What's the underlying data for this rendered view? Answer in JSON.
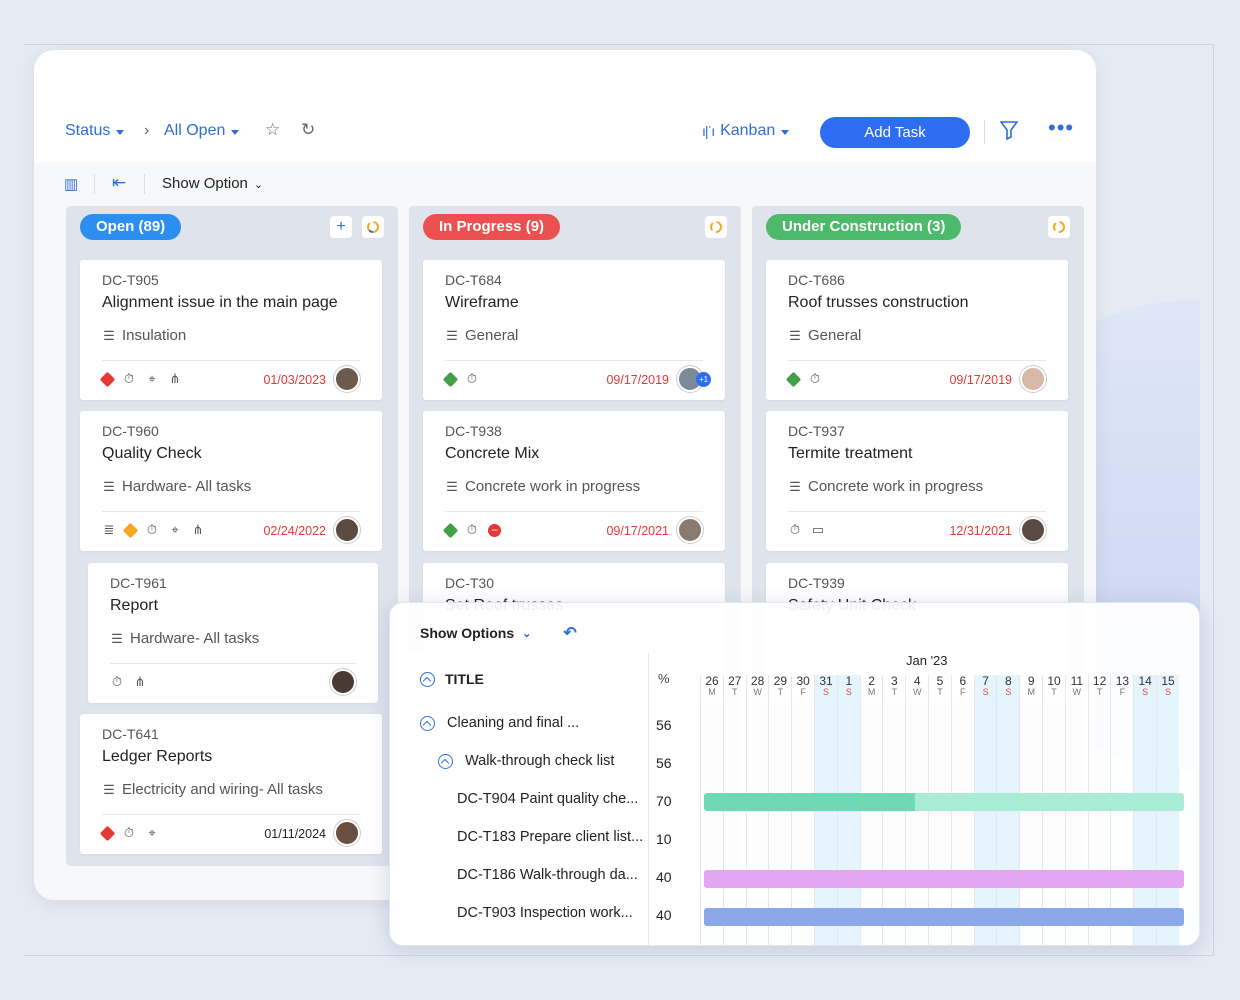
{
  "header": {
    "status_label": "Status",
    "filter_label": "All Open",
    "view_label": "Kanban",
    "add_task_label": "Add Task"
  },
  "toolbar": {
    "show_option_label": "Show Option"
  },
  "columns": [
    {
      "title": "Open (89)",
      "color": "#2c8ef0",
      "cards": [
        {
          "id": "DC-T905",
          "title": "Alignment issue in the main page",
          "category": "Insulation",
          "date": "01/03/2023"
        },
        {
          "id": "DC-T960",
          "title": "Quality Check",
          "category": "Hardware- All tasks",
          "date": "02/24/2022"
        },
        {
          "id": "DC-T961",
          "title": "Report",
          "category": "Hardware- All tasks",
          "date": ""
        },
        {
          "id": "DC-T641",
          "title": "Ledger Reports",
          "category": "Electricity and wiring- All tasks",
          "date": "01/11/2024"
        }
      ]
    },
    {
      "title": "In Progress (9)",
      "color": "#ec4f4f",
      "cards": [
        {
          "id": "DC-T684",
          "title": "Wireframe",
          "category": "General",
          "date": "09/17/2019",
          "badge": "+1"
        },
        {
          "id": "DC-T938",
          "title": "Concrete Mix",
          "category": "Concrete work in progress",
          "date": "09/17/2021"
        },
        {
          "id": "DC-T30",
          "title": "Set Roof trusses",
          "category": "",
          "date": ""
        }
      ]
    },
    {
      "title": "Under Construction (3)",
      "color": "#4cba6a",
      "cards": [
        {
          "id": "DC-T686",
          "title": "Roof trusses construction",
          "category": "General",
          "date": "09/17/2019"
        },
        {
          "id": "DC-T937",
          "title": "Termite treatment",
          "category": "Concrete work in progress",
          "date": "12/31/2021"
        },
        {
          "id": "DC-T939",
          "title": "Safety Unit Check",
          "category": "",
          "date": ""
        }
      ]
    }
  ],
  "gantt": {
    "show_options_label": "Show Options",
    "title_header": "TITLE",
    "pct_header": "%",
    "month_label": "Jan '23",
    "rows": [
      {
        "title": "Cleaning and final ...",
        "pct": "56"
      },
      {
        "title": "Walk-through check list",
        "pct": "56"
      },
      {
        "title": "DC-T904 Paint quality che...",
        "pct": "70"
      },
      {
        "title": "DC-T183 Prepare client list...",
        "pct": "10"
      },
      {
        "title": "DC-T186 Walk-through da...",
        "pct": "40"
      },
      {
        "title": "DC-T903 Inspection work...",
        "pct": "40"
      }
    ],
    "days": [
      {
        "n": "26",
        "w": "M"
      },
      {
        "n": "27",
        "w": "T"
      },
      {
        "n": "28",
        "w": "W"
      },
      {
        "n": "29",
        "w": "T"
      },
      {
        "n": "30",
        "w": "F"
      },
      {
        "n": "31",
        "w": "S"
      },
      {
        "n": "1",
        "w": "S"
      },
      {
        "n": "2",
        "w": "M"
      },
      {
        "n": "3",
        "w": "T"
      },
      {
        "n": "4",
        "w": "W"
      },
      {
        "n": "5",
        "w": "T"
      },
      {
        "n": "6",
        "w": "F"
      },
      {
        "n": "7",
        "w": "S"
      },
      {
        "n": "8",
        "w": "S"
      },
      {
        "n": "9",
        "w": "M"
      },
      {
        "n": "10",
        "w": "T"
      },
      {
        "n": "11",
        "w": "W"
      },
      {
        "n": "12",
        "w": "T"
      },
      {
        "n": "13",
        "w": "F"
      },
      {
        "n": "14",
        "w": "S"
      },
      {
        "n": "15",
        "w": "S"
      }
    ],
    "bar_colors": [
      "#7ee0c0",
      "#e4a5f2",
      "#8aa8ea"
    ]
  }
}
